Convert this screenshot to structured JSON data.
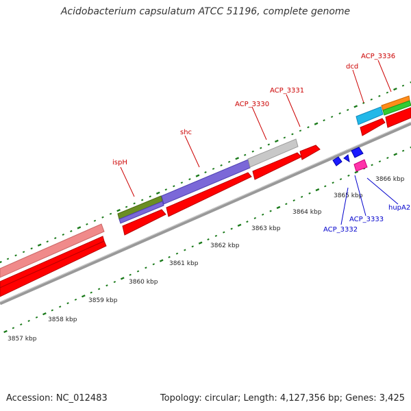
{
  "title": "Acidobacterium capsulatum ATCC 51196, complete genome",
  "footer": {
    "accession": "Accession: NC_012483",
    "summary": "Topology: circular; Length: 4,127,356 bp; Genes: 3,425"
  },
  "colors": {
    "cds": "#ff0000",
    "rna": "#e87c7c",
    "backbone": "#888888",
    "tick": "#1a7a1a",
    "label_top": "#cc0000",
    "label_bottom": "#0000cc"
  },
  "ruler_labels": [
    "3857 kbp",
    "3858 kbp",
    "3859 kbp",
    "3860 kbp",
    "3861 kbp",
    "3862 kbp",
    "3863 kbp",
    "3864 kbp",
    "3865 kbp",
    "3866 kbp"
  ],
  "top_gene_labels": [
    "ispH",
    "shc",
    "ACP_3330",
    "ACP_3331",
    "dcd",
    "ACP_3336"
  ],
  "bottom_gene_labels": [
    "ACP_3332",
    "ACP_3333",
    "hupA2"
  ]
}
